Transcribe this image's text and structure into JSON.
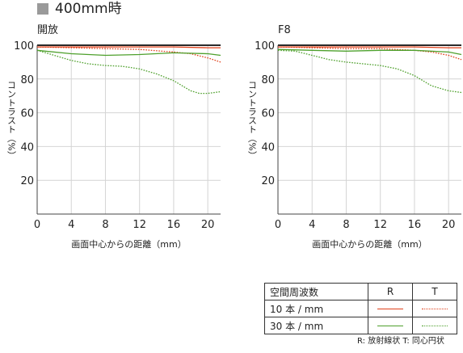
{
  "header": {
    "title": "400mm時"
  },
  "colors": {
    "red": "#e0401a",
    "green": "#4ea02c",
    "top_line": "#2a2a2a"
  },
  "chart_data": [
    {
      "type": "line",
      "title": "開放",
      "xlabel": "画面中心からの距離（mm）",
      "ylabel": "コントラスト（%）",
      "xlim": [
        0,
        21.5
      ],
      "ylim": [
        0,
        100
      ],
      "xticks": [
        0,
        4,
        8,
        12,
        16,
        20
      ],
      "yticks": [
        20,
        40,
        60,
        80,
        100
      ],
      "series": [
        {
          "freq": "10",
          "orient": "R",
          "style": "solid",
          "x": [
            0,
            4,
            8,
            12,
            16,
            20,
            21.5
          ],
          "y": [
            99,
            99,
            99,
            99,
            99,
            98.5,
            98.5
          ]
        },
        {
          "freq": "10",
          "orient": "T",
          "style": "dotted",
          "x": [
            0,
            4,
            8,
            12,
            16,
            18,
            20,
            21.5
          ],
          "y": [
            99,
            98.5,
            98,
            97.5,
            96,
            95,
            92.5,
            90
          ]
        },
        {
          "freq": "30",
          "orient": "R",
          "style": "solid",
          "x": [
            0,
            4,
            8,
            12,
            16,
            20,
            21.5
          ],
          "y": [
            97,
            95,
            94,
            94.5,
            95.5,
            95,
            94
          ]
        },
        {
          "freq": "30",
          "orient": "T",
          "style": "dotted",
          "x": [
            0,
            2,
            4,
            6,
            8,
            10,
            12,
            14,
            16,
            18,
            19,
            20,
            21.5
          ],
          "y": [
            97,
            94,
            91,
            89,
            88,
            87.5,
            86,
            83,
            79,
            73,
            71.5,
            71.5,
            72.5
          ]
        }
      ]
    },
    {
      "type": "line",
      "title": "F8",
      "xlabel": "画面中心からの距離（mm）",
      "ylabel": "コントラスト（%）",
      "xlim": [
        0,
        21.5
      ],
      "ylim": [
        0,
        100
      ],
      "xticks": [
        0,
        4,
        8,
        12,
        16,
        20
      ],
      "yticks": [
        20,
        40,
        60,
        80,
        100
      ],
      "series": [
        {
          "freq": "10",
          "orient": "R",
          "style": "solid",
          "x": [
            0,
            4,
            8,
            12,
            16,
            20,
            21.5
          ],
          "y": [
            99,
            99,
            99,
            99,
            99,
            98.5,
            98.5
          ]
        },
        {
          "freq": "10",
          "orient": "T",
          "style": "dotted",
          "x": [
            0,
            4,
            8,
            12,
            16,
            18,
            20,
            21.5
          ],
          "y": [
            99,
            98.5,
            98,
            98,
            97,
            96,
            94,
            91.5
          ]
        },
        {
          "freq": "30",
          "orient": "R",
          "style": "solid",
          "x": [
            0,
            4,
            8,
            12,
            16,
            20,
            21.5
          ],
          "y": [
            97.5,
            97,
            96.5,
            97,
            97,
            96,
            94.5
          ]
        },
        {
          "freq": "30",
          "orient": "T",
          "style": "dotted",
          "x": [
            0,
            2,
            4,
            6,
            8,
            10,
            12,
            14,
            16,
            18,
            20,
            21.5
          ],
          "y": [
            97,
            96.5,
            94,
            91.5,
            90,
            89,
            88,
            86,
            82,
            76,
            73,
            72
          ]
        }
      ]
    }
  ],
  "legend": {
    "header": "空間周波数",
    "col_r": "R",
    "col_t": "T",
    "rows": [
      {
        "label": "10 本 / mm",
        "freq": "10"
      },
      {
        "label": "30 本 / mm",
        "freq": "30"
      }
    ],
    "note": "R: 放射線状  T: 同心円状"
  }
}
